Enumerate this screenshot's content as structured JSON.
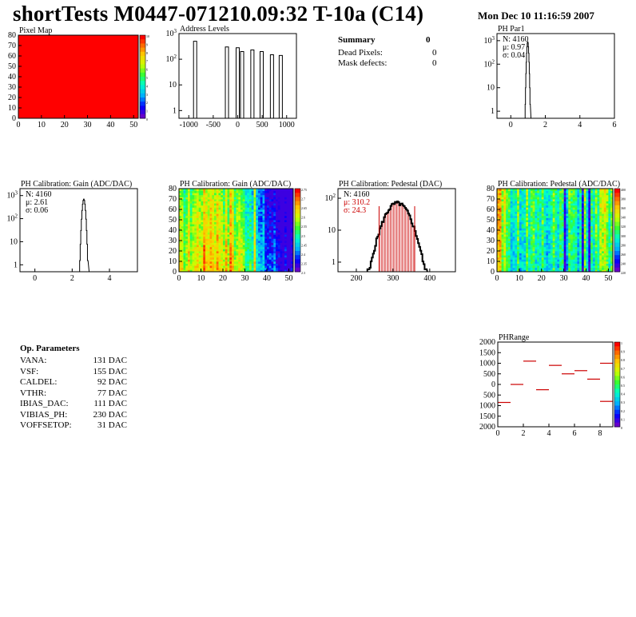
{
  "header": {
    "title": "shortTests M0447-071210.09:32 T-10a (C14)",
    "date": "Mon Dec 10 11:16:59 2007"
  },
  "summary": {
    "title": "Summary",
    "total": "0",
    "rows": [
      {
        "label": "Dead Pixels:",
        "value": "0"
      },
      {
        "label": "Mask defects:",
        "value": "0"
      }
    ]
  },
  "op_parameters": {
    "title": "Op. Parameters",
    "rows": [
      {
        "label": "VANA:",
        "value": "131 DAC"
      },
      {
        "label": "VSF:",
        "value": "155 DAC"
      },
      {
        "label": "CALDEL:",
        "value": "92 DAC"
      },
      {
        "label": "VTHR:",
        "value": "77 DAC"
      },
      {
        "label": "IBIAS_DAC:",
        "value": "111 DAC"
      },
      {
        "label": "VIBIAS_PH:",
        "value": "230 DAC"
      },
      {
        "label": "VOFFSETOP:",
        "value": "31 DAC"
      }
    ]
  },
  "colors": {
    "frame": "#000000",
    "hist_line": "#000000",
    "stats_red": "#cc0000",
    "pixelmap_fill": "#ff0000",
    "phrange_marks": "#cc0000"
  },
  "chart_data": [
    {
      "id": "pixel-map",
      "type": "heatmap",
      "title": "Pixel Map",
      "xlim": [
        0,
        52
      ],
      "ylim": [
        0,
        80
      ],
      "x_ticks": [
        "0",
        "10",
        "20",
        "30",
        "40",
        "50"
      ],
      "y_ticks": [
        "0",
        "10",
        "20",
        "30",
        "40",
        "50",
        "60",
        "70",
        "80"
      ],
      "fill_value": 10,
      "z_ticks": [
        "10",
        "9",
        "8",
        "7",
        "6",
        "5",
        "4",
        "3",
        "2",
        "1",
        "0"
      ]
    },
    {
      "id": "address-levels",
      "type": "bar",
      "title": "Address Levels",
      "xlim": [
        -1200,
        1200
      ],
      "y_log": true,
      "ylim": [
        0.5,
        1000
      ],
      "x_ticks": [
        "-1000",
        "-500",
        "0",
        "500",
        "1000"
      ],
      "y_ticks": [
        "1",
        "10",
        "10^2",
        "10^3"
      ],
      "peaks": [
        {
          "x": -870,
          "y": 500
        },
        {
          "x": -220,
          "y": 300
        },
        {
          "x": 0,
          "y": 280
        },
        {
          "x": 90,
          "y": 200
        },
        {
          "x": 300,
          "y": 230
        },
        {
          "x": 490,
          "y": 200
        },
        {
          "x": 700,
          "y": 150
        },
        {
          "x": 880,
          "y": 140
        }
      ]
    },
    {
      "id": "ph-par1",
      "type": "line",
      "title": "PH Par1",
      "xlim": [
        -0.8,
        6
      ],
      "y_log": true,
      "ylim": [
        0.5,
        2000
      ],
      "x_ticks": [
        "0",
        "2",
        "4",
        "6"
      ],
      "y_ticks": [
        "1",
        "10",
        "10^2",
        "10^3"
      ],
      "stats": [
        "N: 4160",
        "μ: 0.97",
        "σ: 0.04"
      ],
      "peak": {
        "mean": 0.97,
        "sigma": 0.04,
        "max": 900
      }
    },
    {
      "id": "ph-gain-1d",
      "type": "line",
      "title": "PH Calibration: Gain (ADC/DAC)",
      "xlim": [
        -0.8,
        5.5
      ],
      "y_log": true,
      "ylim": [
        0.5,
        2000
      ],
      "x_ticks": [
        "0",
        "2",
        "4"
      ],
      "y_ticks": [
        "1",
        "10",
        "10^2",
        "10^3"
      ],
      "stats": [
        "N: 4160",
        "μ: 2.61",
        "σ: 0.06"
      ],
      "peak": {
        "mean": 2.61,
        "sigma": 0.06,
        "max": 700
      }
    },
    {
      "id": "ph-gain-map",
      "type": "heatmap",
      "title": "PH Calibration: Gain (ADC/DAC)",
      "xlim": [
        0,
        52
      ],
      "ylim": [
        0,
        80
      ],
      "x_ticks": [
        "0",
        "10",
        "20",
        "30",
        "40",
        "50"
      ],
      "y_ticks": [
        "0",
        "10",
        "20",
        "30",
        "40",
        "50",
        "60",
        "70",
        "80"
      ],
      "z_ticks": [
        "2.75",
        "2.7",
        "2.65",
        "2.6",
        "2.55",
        "2.5",
        "2.45",
        "2.4",
        "2.35",
        "2.3"
      ]
    },
    {
      "id": "ph-pedestal-1d",
      "type": "bar",
      "title": "PH Calibration: Pedestal (DAC)",
      "xlim": [
        150,
        470
      ],
      "y_log": true,
      "ylim": [
        0.5,
        200
      ],
      "x_ticks": [
        "200",
        "300",
        "400"
      ],
      "y_ticks": [
        "1",
        "10",
        "10^2"
      ],
      "stats": [
        "N: 4160",
        "μ: 310.2",
        "σ: 24.3"
      ],
      "peak": {
        "mean": 310.2,
        "sigma": 24.3,
        "max": 70
      },
      "range_lines": [
        262,
        359
      ]
    },
    {
      "id": "ph-pedestal-map",
      "type": "heatmap",
      "title": "PH Calibration: Pedestal (ADC/DAC)",
      "xlim": [
        0,
        52
      ],
      "ylim": [
        0,
        80
      ],
      "x_ticks": [
        "0",
        "10",
        "20",
        "30",
        "40",
        "50"
      ],
      "y_ticks": [
        "0",
        "10",
        "20",
        "30",
        "40",
        "50",
        "60",
        "70",
        "80"
      ],
      "z_ticks": [
        "400",
        "380",
        "360",
        "340",
        "320",
        "300",
        "280",
        "260",
        "240",
        "220"
      ]
    },
    {
      "id": "ph-range",
      "type": "scatter",
      "title": "PHRange",
      "xlim": [
        0,
        9
      ],
      "ylim": [
        -2000,
        2000
      ],
      "x_ticks": [
        "0",
        "2",
        "4",
        "6",
        "8"
      ],
      "y_ticks": [
        "2000",
        "1500",
        "1000",
        "500",
        "0",
        "500",
        "1000",
        "1500",
        "2000"
      ],
      "z_ticks": [
        "1",
        "0.9",
        "0.8",
        "0.7",
        "0.6",
        "0.5",
        "0.4",
        "0.3",
        "0.2",
        "0.1",
        "0"
      ],
      "segments": [
        {
          "x": 0.5,
          "y": -850
        },
        {
          "x": 1.5,
          "y": 0
        },
        {
          "x": 2.5,
          "y": 1100
        },
        {
          "x": 3.5,
          "y": -250
        },
        {
          "x": 4.5,
          "y": 900
        },
        {
          "x": 5.5,
          "y": 500
        },
        {
          "x": 6.5,
          "y": 650
        },
        {
          "x": 7.5,
          "y": 250
        },
        {
          "x": 8.5,
          "y": 1000
        },
        {
          "x": 8.5,
          "y": -800
        }
      ]
    }
  ]
}
